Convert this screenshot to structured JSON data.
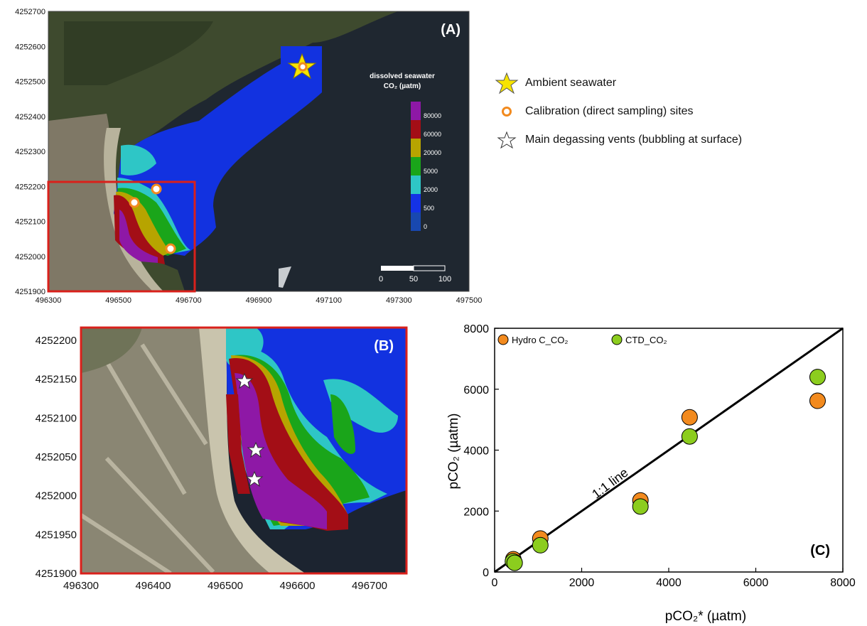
{
  "panelA": {
    "label": "(A)",
    "y_ticks": [
      "4252700",
      "4252600",
      "4252500",
      "4252400",
      "4252300",
      "4252200",
      "4252100",
      "4252000",
      "4251900"
    ],
    "x_ticks": [
      "496300",
      "496500",
      "496700",
      "496900",
      "497100",
      "497300",
      "497500"
    ],
    "colorbar_title_line1": "dissolved seawater",
    "colorbar_title_line2": "CO₂ (µatm)",
    "colorbar_values": [
      "80000",
      "60000",
      "20000",
      "5000",
      "2000",
      "500",
      "0"
    ],
    "colorbar_colors": [
      "#8e18a6",
      "#a30e16",
      "#b7a400",
      "#1aa51a",
      "#2ec6c6",
      "#1432e6",
      "#1848b0"
    ],
    "scale_labels": [
      "0",
      "50",
      "100"
    ]
  },
  "legend": {
    "items": [
      {
        "label": "Ambient seawater",
        "icon": "yellow-star-icon"
      },
      {
        "label": "Calibration (direct sampling) sites",
        "icon": "orange-circle-icon"
      },
      {
        "label": "Main degassing vents (bubbling at surface)",
        "icon": "white-star-icon"
      }
    ]
  },
  "panelB": {
    "label": "(B)",
    "y_ticks": [
      "4252200",
      "4252150",
      "4252100",
      "4252050",
      "4252000",
      "4251950",
      "4251900"
    ],
    "x_ticks": [
      "496300",
      "496400",
      "496500",
      "496600",
      "496700"
    ]
  },
  "panelC": {
    "label": "(C)",
    "line_label": "1:1 line",
    "legend_hydro": "Hydro C_CO₂",
    "legend_ctd": "CTD_CO₂"
  },
  "chart_data": {
    "type": "scatter",
    "xlabel": "pCO₂* (µatm)",
    "ylabel": "pCO₂  (µatm)",
    "xlim": [
      0,
      8000
    ],
    "ylim": [
      0,
      8000
    ],
    "x_ticks": [
      "0",
      "2000",
      "4000",
      "6000",
      "8000"
    ],
    "y_ticks": [
      "0",
      "2000",
      "4000",
      "6000",
      "8000"
    ],
    "legend_position": "top-left",
    "series": [
      {
        "name": "Hydro C_CO₂",
        "color": "#f28a1e",
        "x": [
          430,
          450,
          1050,
          3350,
          4480,
          7420
        ],
        "y": [
          420,
          330,
          1100,
          2350,
          5080,
          5620
        ]
      },
      {
        "name": "CTD_CO₂",
        "color": "#8ccd1e",
        "x": [
          420,
          460,
          1050,
          3350,
          4480,
          7420
        ],
        "y": [
          350,
          300,
          880,
          2150,
          4450,
          6400
        ]
      }
    ],
    "reference_line": {
      "label": "1:1 line",
      "x": [
        0,
        8000
      ],
      "y": [
        0,
        8000
      ]
    }
  }
}
